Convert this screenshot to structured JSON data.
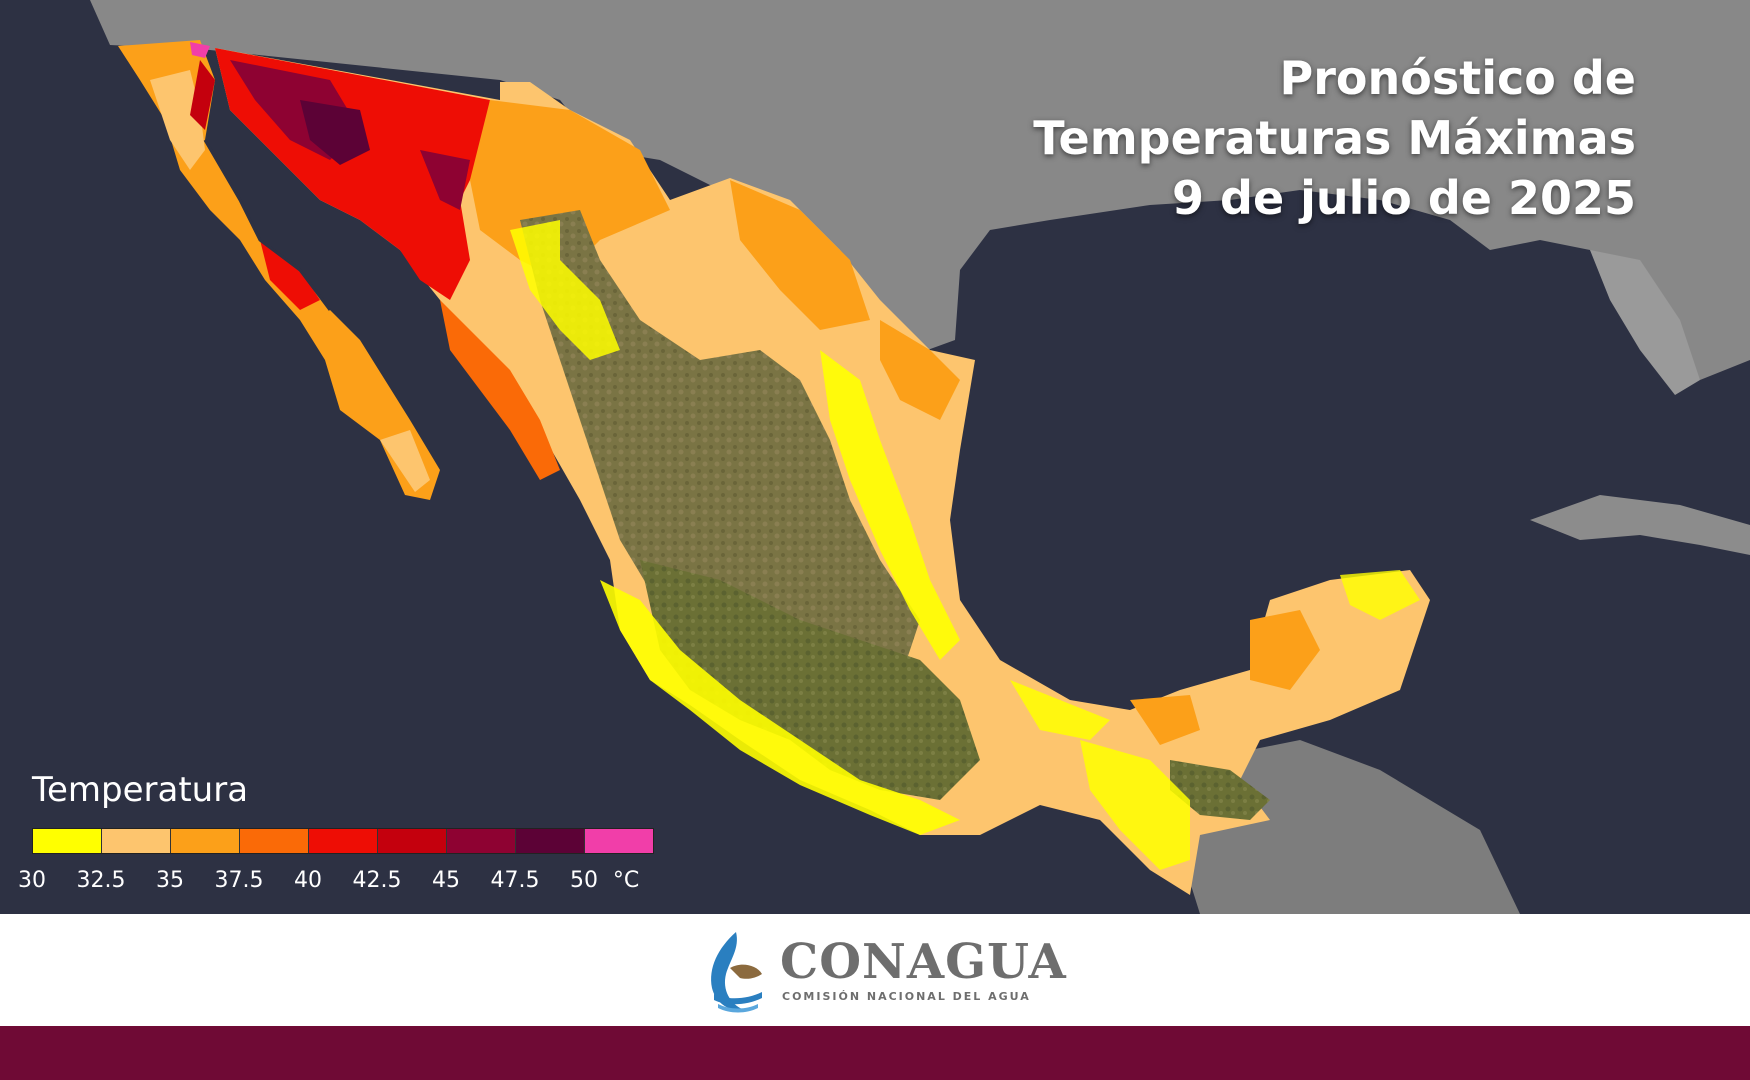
{
  "title": {
    "line1": "Pronóstico de",
    "line2": "Temperaturas Máximas",
    "line3": "9 de julio de 2025"
  },
  "legend": {
    "title": "Temperatura",
    "colors": [
      "#ffff00",
      "#fdc56e",
      "#fca019",
      "#fa6a07",
      "#ee0d05",
      "#c4000d",
      "#8e0232",
      "#5c0236",
      "#f13ea9"
    ],
    "ticks": [
      "30",
      "32.5",
      "35",
      "37.5",
      "40",
      "42.5",
      "45",
      "47.5",
      "50",
      "°C"
    ]
  },
  "footer": {
    "logo_name": "CONAGUA",
    "logo_subtitle": "COMISIÓN NACIONAL DEL AGUA",
    "bar_color": "#6f0a35"
  },
  "map": {
    "ocean_color": "#2d3143",
    "land_color": "#8c8c8c",
    "region": "México"
  }
}
